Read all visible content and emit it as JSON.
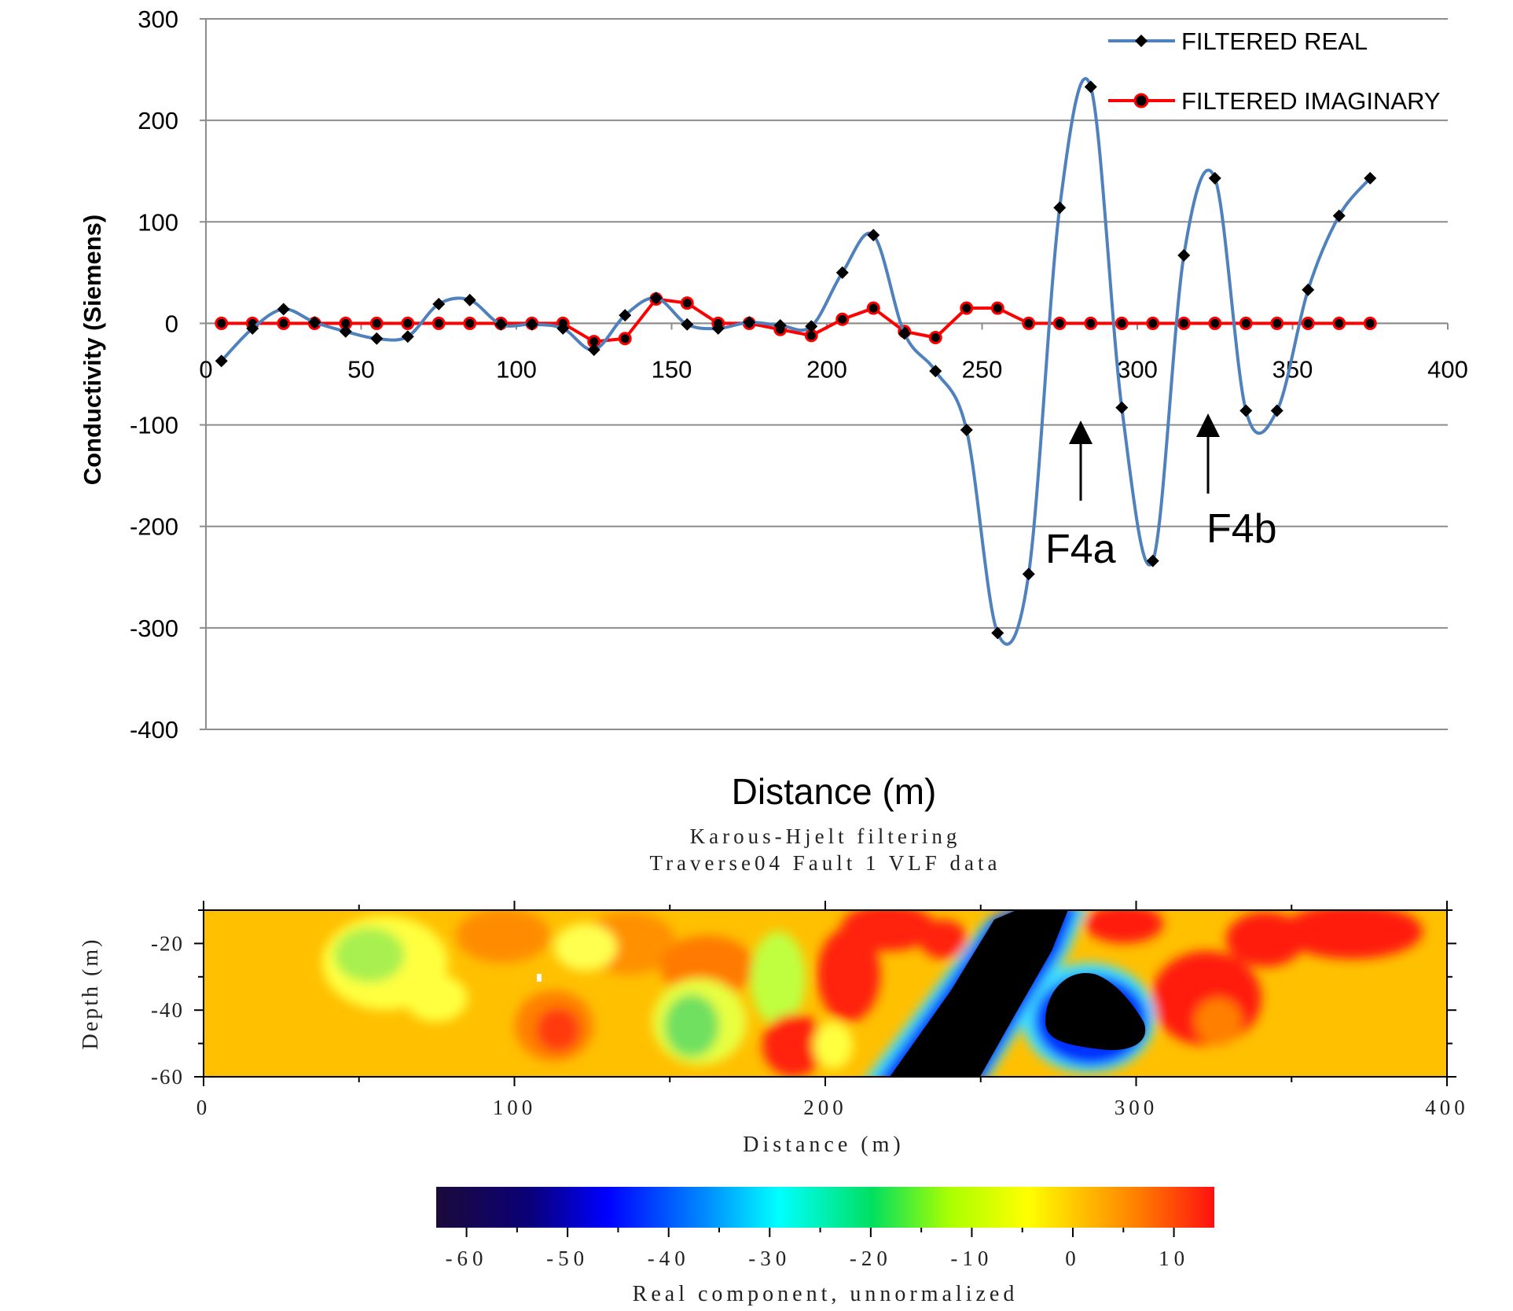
{
  "chart_data": [
    {
      "type": "line",
      "xlabel": "Distance (m)",
      "ylabel": "Conductivity (Siemens)",
      "xlim": [
        0,
        400
      ],
      "ylim": [
        -400,
        300
      ],
      "x_ticks": [
        0,
        50,
        100,
        150,
        200,
        250,
        300,
        350,
        400
      ],
      "y_ticks": [
        300,
        200,
        100,
        0,
        -100,
        -200,
        -300,
        -400
      ],
      "grid": "horizontal",
      "legend_position": "top-right",
      "x": [
        5,
        15,
        25,
        35,
        45,
        55,
        65,
        75,
        85,
        95,
        105,
        115,
        125,
        135,
        145,
        155,
        165,
        175,
        185,
        195,
        205,
        215,
        225,
        235,
        245,
        255,
        265,
        275,
        285,
        295,
        305,
        315,
        325,
        335,
        345,
        355,
        365,
        375
      ],
      "series": [
        {
          "name": "FILTERED REAL",
          "color": "#4F81BD",
          "marker": "diamond",
          "values": [
            -37,
            -5,
            14,
            1,
            -8,
            -15,
            -13,
            19,
            23,
            -1,
            -1,
            -5,
            -26,
            8,
            25,
            -1,
            -5,
            1,
            -2,
            -3,
            50,
            87,
            -10,
            -47,
            -105,
            -305,
            -247,
            114,
            233,
            -83,
            -234,
            67,
            143,
            -86,
            -86,
            33,
            106,
            143
          ]
        },
        {
          "name": "FILTERED IMAGINARY",
          "color": "#FF0000",
          "marker": "circle",
          "values": [
            0,
            0,
            0,
            0,
            0,
            0,
            0,
            0,
            0,
            0,
            0,
            0,
            -18,
            -15,
            24,
            20,
            0,
            0,
            -6,
            -12,
            4,
            15,
            -8,
            -14,
            15,
            15,
            0,
            0,
            0,
            0,
            0,
            0,
            0,
            0,
            0,
            0,
            0,
            0
          ]
        }
      ],
      "annotations": [
        {
          "text": "F4a",
          "x": 282,
          "y": -135
        },
        {
          "text": "F4b",
          "x": 323,
          "y": -130
        }
      ]
    },
    {
      "type": "heatmap",
      "title": "Karous-Hjelt filtering",
      "subtitle": "Traverse04 Fault 1 VLF data",
      "xlabel": "Distance (m)",
      "ylabel": "Depth (m)",
      "xlim": [
        0,
        400
      ],
      "ylim": [
        -60,
        -10
      ],
      "x_ticks": [
        0,
        100,
        200,
        300,
        400
      ],
      "y_ticks": [
        -20,
        -40,
        -60
      ],
      "colorbar": {
        "label": "Real component, unnormalized",
        "range": [
          -63,
          14
        ],
        "ticks": [
          -60,
          -50,
          -40,
          -30,
          -20,
          -10,
          0,
          10
        ]
      }
    }
  ]
}
